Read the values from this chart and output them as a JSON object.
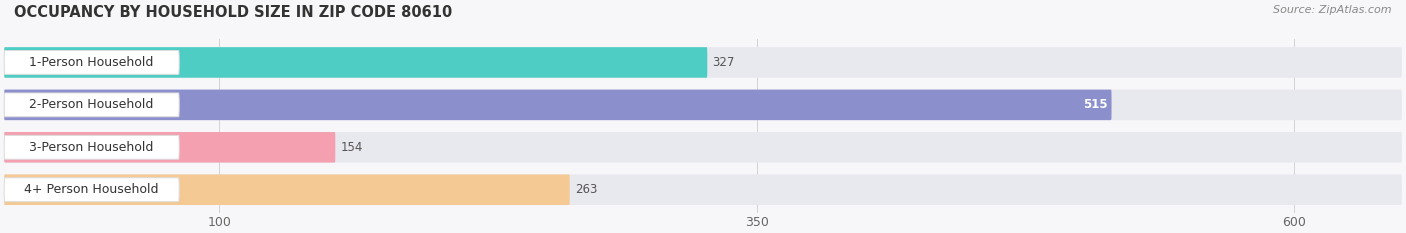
{
  "title": "OCCUPANCY BY HOUSEHOLD SIZE IN ZIP CODE 80610",
  "source": "Source: ZipAtlas.com",
  "categories": [
    "1-Person Household",
    "2-Person Household",
    "3-Person Household",
    "4+ Person Household"
  ],
  "values": [
    327,
    515,
    154,
    263
  ],
  "bar_colors": [
    "#4ECDC4",
    "#8B8FCC",
    "#F4A0B0",
    "#F5C994"
  ],
  "bar_bg_color": "#E8E8EF",
  "value_label_inside": [
    false,
    true,
    false,
    false
  ],
  "xlim": [
    0,
    650
  ],
  "xticks": [
    100,
    350,
    600
  ],
  "title_fontsize": 10.5,
  "source_fontsize": 8,
  "bar_label_fontsize": 9,
  "value_fontsize": 8.5,
  "tick_fontsize": 9,
  "figsize": [
    14.06,
    2.33
  ],
  "dpi": 100,
  "bg_color": "#F7F7FA"
}
